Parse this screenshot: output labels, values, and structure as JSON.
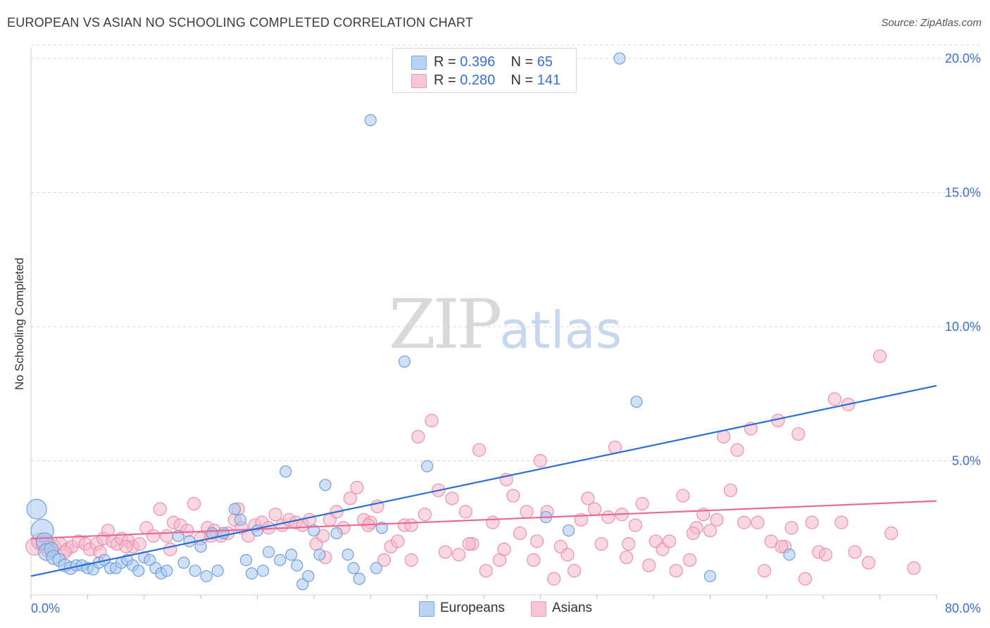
{
  "title": "EUROPEAN VS ASIAN NO SCHOOLING COMPLETED CORRELATION CHART",
  "source": "Source: ZipAtlas.com",
  "watermark": {
    "zip": "ZIP",
    "atlas": "atlas"
  },
  "legend_top": [
    {
      "r_label": "R =",
      "r_value": "0.396",
      "n_label": "N =",
      "n_value": "65"
    },
    {
      "r_label": "R =",
      "r_value": "0.280",
      "n_label": "N =",
      "n_value": "141"
    }
  ],
  "legend_bottom": [
    "Europeans",
    "Asians"
  ],
  "colors": {
    "europeans_fill": "#a9c8f0",
    "europeans_stroke": "#6f9fdc",
    "europeans_line": "#2b6fd6",
    "asians_fill": "#f6b8cb",
    "asians_stroke": "#eb90ad",
    "asians_line": "#e8699a",
    "tick_label": "#3b6fcf",
    "grid": "#d8d8d8"
  },
  "chart_data": {
    "type": "scatter",
    "title": "EUROPEAN VS ASIAN NO SCHOOLING COMPLETED CORRELATION CHART",
    "xlabel": "",
    "ylabel": "No Schooling Completed",
    "xlim": [
      0,
      80
    ],
    "ylim": [
      0,
      20.5
    ],
    "x_tick_labels": [
      {
        "value": 0,
        "label": "0.0%"
      },
      {
        "value": 80,
        "label": "80.0%"
      }
    ],
    "y_tick_labels": [
      {
        "value": 5,
        "label": "5.0%"
      },
      {
        "value": 10,
        "label": "10.0%"
      },
      {
        "value": 15,
        "label": "15.0%"
      },
      {
        "value": 20,
        "label": "20.0%"
      }
    ],
    "grid": "horizontal dashed",
    "legend_placement": "top-center and bottom",
    "series": [
      {
        "name": "Europeans",
        "r": 0.396,
        "n": 65,
        "trend": [
          [
            0,
            0.7
          ],
          [
            80,
            7.8
          ]
        ],
        "points": [
          [
            0.5,
            3.2,
            14
          ],
          [
            1.0,
            2.4,
            16
          ],
          [
            1.2,
            2.0,
            12
          ],
          [
            1.4,
            1.6,
            12
          ],
          [
            1.8,
            1.7,
            10
          ],
          [
            2.0,
            1.4,
            10
          ],
          [
            2.5,
            1.3,
            9
          ],
          [
            3.0,
            1.1,
            9
          ],
          [
            3.5,
            1.0,
            9
          ],
          [
            4.0,
            1.1,
            8
          ],
          [
            4.5,
            1.1,
            8
          ],
          [
            5.0,
            1.0,
            8
          ],
          [
            5.5,
            0.95,
            8
          ],
          [
            6.0,
            1.2,
            8
          ],
          [
            6.5,
            1.3,
            8
          ],
          [
            7.0,
            1.0,
            8
          ],
          [
            7.5,
            1.0,
            8
          ],
          [
            8.0,
            1.2,
            8
          ],
          [
            8.5,
            1.3,
            8
          ],
          [
            9.0,
            1.1,
            8
          ],
          [
            9.5,
            0.9,
            8
          ],
          [
            10.0,
            1.4,
            8
          ],
          [
            10.5,
            1.3,
            8
          ],
          [
            11.0,
            1.0,
            8
          ],
          [
            11.5,
            0.8,
            8
          ],
          [
            12.0,
            0.9,
            8
          ],
          [
            13.0,
            2.2,
            8
          ],
          [
            13.5,
            1.2,
            8
          ],
          [
            14.0,
            2.0,
            8
          ],
          [
            14.5,
            0.9,
            8
          ],
          [
            15.0,
            1.8,
            8
          ],
          [
            15.5,
            0.7,
            8
          ],
          [
            16.0,
            2.3,
            8
          ],
          [
            16.5,
            0.9,
            8
          ],
          [
            17.0,
            2.3,
            8
          ],
          [
            18.0,
            3.2,
            8
          ],
          [
            18.5,
            2.8,
            8
          ],
          [
            19.0,
            1.3,
            8
          ],
          [
            19.5,
            0.8,
            8
          ],
          [
            20.0,
            2.4,
            8
          ],
          [
            20.5,
            0.9,
            8
          ],
          [
            21.0,
            1.6,
            8
          ],
          [
            22.0,
            1.3,
            8
          ],
          [
            22.5,
            4.6,
            8
          ],
          [
            23.0,
            1.5,
            8
          ],
          [
            23.5,
            1.1,
            8
          ],
          [
            24.0,
            0.4,
            8
          ],
          [
            24.5,
            0.7,
            8
          ],
          [
            25.0,
            2.4,
            8
          ],
          [
            25.5,
            1.5,
            8
          ],
          [
            26.0,
            4.1,
            8
          ],
          [
            27.0,
            2.3,
            8
          ],
          [
            28.0,
            1.5,
            8
          ],
          [
            28.5,
            1.0,
            8
          ],
          [
            29.0,
            0.6,
            8
          ],
          [
            30.0,
            17.7,
            8
          ],
          [
            30.5,
            1.0,
            8
          ],
          [
            31.0,
            2.5,
            8
          ],
          [
            33.0,
            8.7,
            8
          ],
          [
            35.0,
            4.8,
            8
          ],
          [
            45.5,
            2.9,
            8
          ],
          [
            47.5,
            2.4,
            8
          ],
          [
            52.0,
            20.0,
            8
          ],
          [
            53.5,
            7.2,
            8
          ],
          [
            60.0,
            0.7,
            8
          ],
          [
            67.0,
            1.5,
            8
          ]
        ]
      },
      {
        "name": "Asians",
        "r": 0.28,
        "n": 141,
        "trend": [
          [
            0,
            2.1
          ],
          [
            80,
            3.5
          ]
        ],
        "points": [
          [
            0.3,
            1.8,
            12
          ],
          [
            0.8,
            2.0,
            12
          ],
          [
            1.2,
            1.9,
            12
          ],
          [
            1.6,
            1.7,
            12
          ],
          [
            2.0,
            1.8,
            10
          ],
          [
            2.6,
            1.9,
            9
          ],
          [
            3.2,
            1.7,
            9
          ],
          [
            3.6,
            1.8,
            9
          ],
          [
            4.2,
            2.0,
            9
          ],
          [
            4.8,
            1.9,
            9
          ],
          [
            5.2,
            1.7,
            9
          ],
          [
            5.8,
            1.9,
            9
          ],
          [
            6.4,
            2.1,
            9
          ],
          [
            6.8,
            2.4,
            9
          ],
          [
            7.2,
            2.0,
            9
          ],
          [
            7.6,
            1.9,
            9
          ],
          [
            8.0,
            2.1,
            9
          ],
          [
            8.6,
            2.0,
            9
          ],
          [
            9.0,
            1.8,
            9
          ],
          [
            9.6,
            1.9,
            9
          ],
          [
            10.2,
            2.5,
            9
          ],
          [
            10.8,
            2.2,
            9
          ],
          [
            11.4,
            3.2,
            9
          ],
          [
            12.0,
            2.2,
            9
          ],
          [
            12.6,
            2.7,
            9
          ],
          [
            13.2,
            2.6,
            9
          ],
          [
            13.8,
            2.4,
            9
          ],
          [
            14.4,
            3.4,
            9
          ],
          [
            15.0,
            2.1,
            9
          ],
          [
            15.6,
            2.5,
            9
          ],
          [
            16.2,
            2.4,
            9
          ],
          [
            16.8,
            2.2,
            9
          ],
          [
            17.4,
            2.3,
            9
          ],
          [
            18.0,
            2.8,
            9
          ],
          [
            18.6,
            2.5,
            9
          ],
          [
            19.2,
            2.2,
            9
          ],
          [
            19.8,
            2.6,
            9
          ],
          [
            20.4,
            2.7,
            9
          ],
          [
            21.0,
            2.5,
            9
          ],
          [
            21.6,
            3.0,
            9
          ],
          [
            22.2,
            2.6,
            9
          ],
          [
            22.8,
            2.8,
            9
          ],
          [
            23.4,
            2.7,
            9
          ],
          [
            24.0,
            2.6,
            9
          ],
          [
            24.6,
            2.8,
            9
          ],
          [
            25.2,
            1.9,
            9
          ],
          [
            25.8,
            2.2,
            9
          ],
          [
            26.4,
            2.8,
            9
          ],
          [
            27.0,
            3.1,
            9
          ],
          [
            27.6,
            2.5,
            9
          ],
          [
            28.2,
            3.6,
            9
          ],
          [
            28.8,
            4.0,
            9
          ],
          [
            29.4,
            2.8,
            9
          ],
          [
            30.0,
            2.7,
            9
          ],
          [
            30.6,
            3.3,
            9
          ],
          [
            31.2,
            1.3,
            9
          ],
          [
            31.8,
            1.8,
            9
          ],
          [
            32.4,
            2.0,
            9
          ],
          [
            33.0,
            2.6,
            9
          ],
          [
            33.6,
            2.6,
            9
          ],
          [
            34.2,
            5.9,
            9
          ],
          [
            34.8,
            3.0,
            9
          ],
          [
            35.4,
            6.5,
            9
          ],
          [
            36.0,
            3.9,
            9
          ],
          [
            36.6,
            1.6,
            9
          ],
          [
            37.2,
            3.6,
            9
          ],
          [
            37.8,
            1.5,
            9
          ],
          [
            38.4,
            3.1,
            9
          ],
          [
            39.0,
            1.9,
            9
          ],
          [
            39.6,
            5.4,
            9
          ],
          [
            40.2,
            0.9,
            9
          ],
          [
            40.8,
            2.7,
            9
          ],
          [
            41.4,
            1.3,
            9
          ],
          [
            42.0,
            4.3,
            9
          ],
          [
            42.6,
            3.7,
            9
          ],
          [
            43.2,
            2.3,
            9
          ],
          [
            43.8,
            3.1,
            9
          ],
          [
            44.4,
            1.3,
            9
          ],
          [
            45.0,
            5.0,
            9
          ],
          [
            45.6,
            3.1,
            9
          ],
          [
            46.2,
            0.6,
            9
          ],
          [
            46.8,
            1.8,
            9
          ],
          [
            47.4,
            1.5,
            9
          ],
          [
            48.0,
            0.9,
            9
          ],
          [
            48.6,
            2.8,
            9
          ],
          [
            49.2,
            3.6,
            9
          ],
          [
            49.8,
            3.2,
            9
          ],
          [
            50.4,
            1.9,
            9
          ],
          [
            51.0,
            2.9,
            9
          ],
          [
            51.6,
            5.5,
            9
          ],
          [
            52.2,
            3.0,
            9
          ],
          [
            52.8,
            1.9,
            9
          ],
          [
            53.4,
            2.6,
            9
          ],
          [
            54.0,
            3.4,
            9
          ],
          [
            54.6,
            1.1,
            9
          ],
          [
            55.2,
            2.0,
            9
          ],
          [
            55.8,
            1.7,
            9
          ],
          [
            56.4,
            2.0,
            9
          ],
          [
            57.0,
            0.9,
            9
          ],
          [
            57.6,
            3.7,
            9
          ],
          [
            58.2,
            1.3,
            9
          ],
          [
            58.8,
            2.5,
            9
          ],
          [
            59.4,
            3.0,
            9
          ],
          [
            60.0,
            2.4,
            9
          ],
          [
            60.6,
            2.8,
            9
          ],
          [
            61.2,
            5.9,
            9
          ],
          [
            61.8,
            3.9,
            9
          ],
          [
            62.4,
            5.4,
            9
          ],
          [
            63.0,
            2.7,
            9
          ],
          [
            63.6,
            6.2,
            9
          ],
          [
            64.2,
            2.7,
            9
          ],
          [
            64.8,
            0.9,
            9
          ],
          [
            65.4,
            2.0,
            9
          ],
          [
            66.0,
            6.5,
            9
          ],
          [
            66.6,
            1.8,
            9
          ],
          [
            67.2,
            2.5,
            9
          ],
          [
            67.8,
            6.0,
            9
          ],
          [
            68.4,
            0.6,
            9
          ],
          [
            69.0,
            2.7,
            9
          ],
          [
            69.6,
            1.6,
            9
          ],
          [
            70.2,
            1.5,
            9
          ],
          [
            71.0,
            7.3,
            9
          ],
          [
            71.6,
            2.7,
            9
          ],
          [
            72.2,
            7.1,
            9
          ],
          [
            72.8,
            1.6,
            9
          ],
          [
            75.0,
            8.9,
            9
          ],
          [
            76.0,
            2.3,
            9
          ],
          [
            78.0,
            1.0,
            9
          ],
          [
            8.4,
            1.8,
            9
          ],
          [
            12.3,
            1.7,
            9
          ],
          [
            18.3,
            3.2,
            9
          ],
          [
            26.0,
            1.4,
            9
          ],
          [
            33.6,
            1.3,
            9
          ],
          [
            38.7,
            1.9,
            9
          ],
          [
            44.7,
            2.0,
            9
          ],
          [
            52.6,
            1.4,
            9
          ],
          [
            58.5,
            2.3,
            9
          ],
          [
            66.3,
            1.8,
            9
          ],
          [
            74.0,
            1.2,
            9
          ],
          [
            3.0,
            1.6,
            9
          ],
          [
            6.1,
            1.6,
            9
          ],
          [
            15.9,
            2.2,
            9
          ],
          [
            29.8,
            2.6,
            9
          ],
          [
            41.8,
            1.7,
            9
          ]
        ]
      }
    ]
  }
}
